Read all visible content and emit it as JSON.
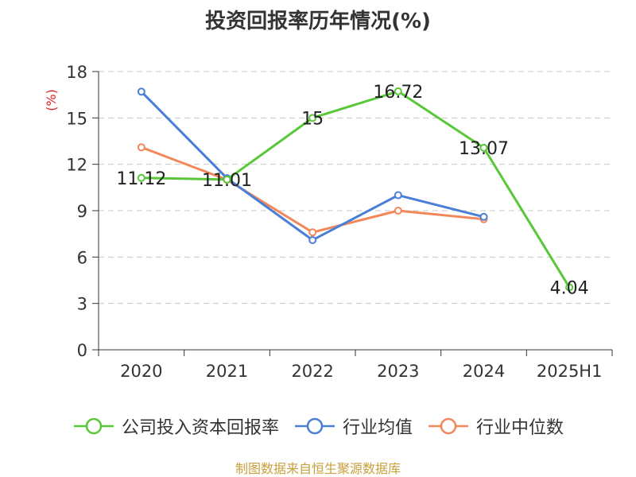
{
  "chart_data": {
    "type": "line",
    "title": "投资回报率历年情况(%)",
    "ylabel": "(%)",
    "xlabel": "",
    "categories": [
      "2020",
      "2021",
      "2022",
      "2023",
      "2024",
      "2025H1"
    ],
    "ylim": [
      0,
      18
    ],
    "yticks": [
      0,
      3,
      6,
      9,
      12,
      15,
      18
    ],
    "grid": true,
    "legend_position": "bottom",
    "series": [
      {
        "name": "公司投入资本回报率",
        "color": "#5ac73a",
        "values": [
          11.12,
          11.01,
          15,
          16.72,
          13.07,
          4.04
        ],
        "labels": [
          "11.12",
          "11.01",
          "15",
          "16.72",
          "13.07",
          "4.04"
        ]
      },
      {
        "name": "行业均值",
        "color": "#4a7fd8",
        "values": [
          16.7,
          11.1,
          7.1,
          10.0,
          8.6,
          null
        ]
      },
      {
        "name": "行业中位数",
        "color": "#f4875a",
        "values": [
          13.1,
          11.0,
          7.6,
          9.0,
          8.45,
          null
        ]
      }
    ]
  },
  "source": "制图数据来自恒生聚源数据库"
}
